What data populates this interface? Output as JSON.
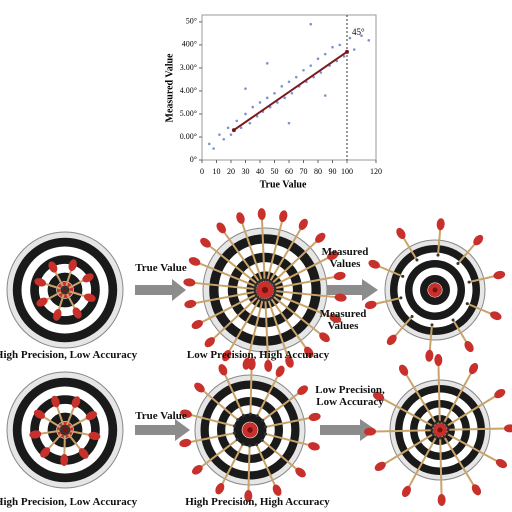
{
  "chart_data": {
    "type": "scatter",
    "x_label": "True Value",
    "y_label": "Measured Value",
    "color": "#5a78c8",
    "x": [
      5,
      8,
      12,
      15,
      18,
      20,
      24,
      27,
      30,
      33,
      35,
      38,
      40,
      42,
      45,
      47,
      50,
      52,
      55,
      57,
      60,
      62,
      65,
      67,
      70,
      72,
      75,
      77,
      80,
      82,
      85,
      88,
      90,
      93,
      95,
      98,
      102,
      105,
      110,
      115,
      45,
      60,
      75,
      85,
      30
    ],
    "y": [
      0.7,
      0.5,
      1.1,
      0.9,
      1.4,
      1.1,
      1.7,
      1.4,
      2.0,
      1.6,
      2.3,
      1.9,
      2.5,
      2.1,
      2.7,
      2.3,
      2.9,
      2.5,
      3.2,
      2.7,
      3.4,
      2.9,
      3.6,
      3.2,
      3.9,
      3.4,
      4.1,
      3.6,
      4.4,
      3.8,
      4.6,
      4.1,
      4.9,
      4.3,
      5.0,
      4.5,
      5.3,
      4.8,
      5.4,
      5.2,
      4.2,
      1.6,
      5.9,
      2.8,
      3.1
    ],
    "trend": {
      "x": [
        22,
        100
      ],
      "y": [
        1.3,
        4.7
      ],
      "color": "#7a1a1a"
    },
    "reference_x": 100,
    "annotation": "45°",
    "xlim": [
      0,
      120
    ],
    "ylim": [
      0,
      6.3
    ],
    "xticks": [
      0,
      10,
      20,
      30,
      40,
      50,
      60,
      70,
      80,
      90,
      100,
      120
    ],
    "yticks": [
      {
        "value": 0,
        "label": "0°"
      },
      {
        "value": 1,
        "label": "0.00°"
      },
      {
        "value": 2,
        "label": "5.00°"
      },
      {
        "value": 3,
        "label": "4.00°"
      },
      {
        "value": 4,
        "label": "3.00°"
      },
      {
        "value": 5,
        "label": "400°"
      },
      {
        "value": 6,
        "label": "50°"
      }
    ]
  },
  "diagram": {
    "row1": {
      "arrow1": "True Value",
      "measured_top": "Measured Values",
      "measured_bottom": "Measured Values",
      "caption_left": "High Precision, Low Accuracy",
      "caption_middle": "Low Precision, High Accuracy"
    },
    "row2": {
      "arrow1": "True Value",
      "callout": "Low Precision, Low Accuracy",
      "caption_left": "High Precision, Low Accuracy",
      "caption_middle": "High Precision, High Accuracy"
    }
  }
}
